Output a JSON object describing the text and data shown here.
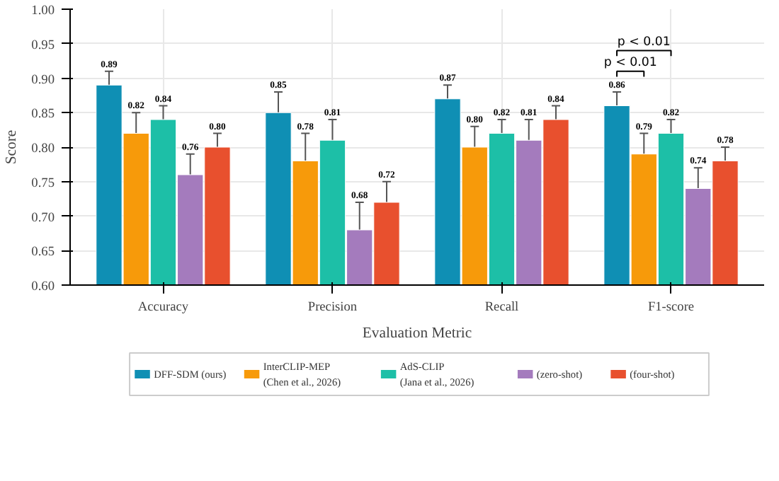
{
  "chart_data": {
    "type": "bar",
    "xlabel": "Evaluation Metric",
    "ylabel": "Score",
    "categories": [
      "Accuracy",
      "Precision",
      "Recall",
      "F1-score"
    ],
    "series": [
      {
        "name": "DFF-SDM (ours)",
        "color": "#0f8fb4",
        "values": [
          0.89,
          0.85,
          0.87,
          0.86
        ],
        "value_labels": [
          "0.89",
          "0.85",
          "0.87",
          "0.86"
        ],
        "errors": [
          0.02,
          0.03,
          0.02,
          0.02
        ]
      },
      {
        "name": "InterCLIP-MEP\n(Chen et al., 2026)",
        "color": "#f79a0a",
        "values": [
          0.82,
          0.78,
          0.8,
          0.79
        ],
        "value_labels": [
          "0.82",
          "0.78",
          "0.80",
          "0.79"
        ],
        "errors": [
          0.03,
          0.04,
          0.03,
          0.03
        ]
      },
      {
        "name": "AdS-CLIP\n(Jana et al., 2026)",
        "color": "#1dbfa7",
        "values": [
          0.84,
          0.81,
          0.82,
          0.82
        ],
        "value_labels": [
          "0.84",
          "0.81",
          "0.82",
          "0.82"
        ],
        "errors": [
          0.02,
          0.03,
          0.02,
          0.02
        ]
      },
      {
        "name": "(zero-shot)",
        "color": "#a47bbd",
        "values": [
          0.76,
          0.68,
          0.81,
          0.74
        ],
        "value_labels": [
          "0.76",
          "0.68",
          "0.81",
          "0.74"
        ],
        "errors": [
          0.03,
          0.04,
          0.03,
          0.03
        ]
      },
      {
        "name": "(four-shot)",
        "color": "#e8502e",
        "values": [
          0.8,
          0.72,
          0.84,
          0.78
        ],
        "value_labels": [
          "0.80",
          "0.72",
          "0.84",
          "0.78"
        ],
        "errors": [
          0.02,
          0.03,
          0.02,
          0.02
        ]
      }
    ],
    "ylim": [
      0.6,
      1.0
    ],
    "yticks": [
      {
        "value": 0.6,
        "label": "0.60"
      },
      {
        "value": 0.65,
        "label": "0.65"
      },
      {
        "value": 0.7,
        "label": "0.70"
      },
      {
        "value": 0.75,
        "label": "0.75"
      },
      {
        "value": 0.8,
        "label": "0.80"
      },
      {
        "value": 0.85,
        "label": "0.85"
      },
      {
        "value": 0.9,
        "label": "0.90"
      },
      {
        "value": 0.95,
        "label": "0.95"
      },
      {
        "value": 1.0,
        "label": "1.00"
      }
    ],
    "annotations": [
      "p < 0.01",
      "p < 0.01"
    ],
    "grid": true,
    "legend": "bottom"
  }
}
